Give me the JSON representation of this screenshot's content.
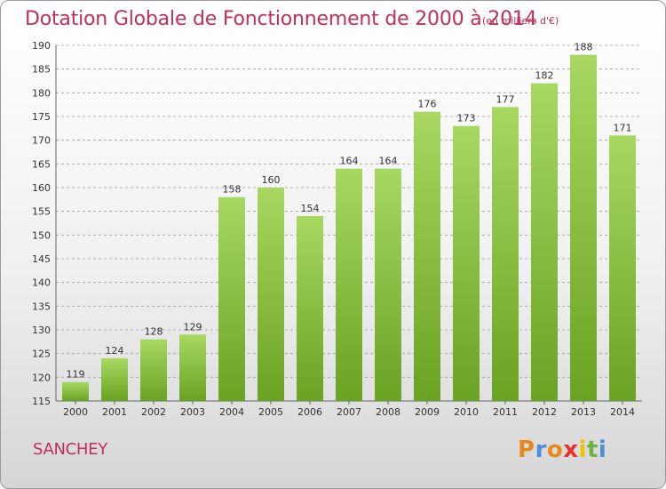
{
  "header": {
    "title": "Dotation Globale de Fonctionnement de 2000 à 2014",
    "subtitle": "(en milliers d'€)"
  },
  "footer": {
    "commune": "SANCHEY",
    "logo_text": "Proxiti",
    "logo_colors": [
      "#e8891d",
      "#4c8fd6",
      "#e8891d",
      "#e8312b",
      "#f2c100",
      "#6cb33f",
      "#4c8fd6"
    ]
  },
  "colors": {
    "title": "#c0305a",
    "bar_light": "#a8d862",
    "bar_dark": "#6aa222",
    "gridline": "#9e9e9e"
  },
  "chart_data": {
    "type": "bar",
    "title": "Dotation Globale de Fonctionnement de 2000 à 2014",
    "subtitle": "(en milliers d'€)",
    "categories": [
      "2000",
      "2001",
      "2002",
      "2003",
      "2004",
      "2005",
      "2006",
      "2007",
      "2008",
      "2009",
      "2010",
      "2011",
      "2012",
      "2013",
      "2014"
    ],
    "values": [
      119,
      124,
      128,
      129,
      158,
      160,
      154,
      164,
      164,
      176,
      173,
      177,
      182,
      188,
      171
    ],
    "ylim": [
      115,
      190
    ],
    "yticks": [
      115,
      120,
      125,
      130,
      135,
      140,
      145,
      150,
      155,
      160,
      165,
      170,
      175,
      180,
      185,
      190
    ],
    "grid": "horizontal-dashed",
    "data_labels": true,
    "legend": "none"
  }
}
